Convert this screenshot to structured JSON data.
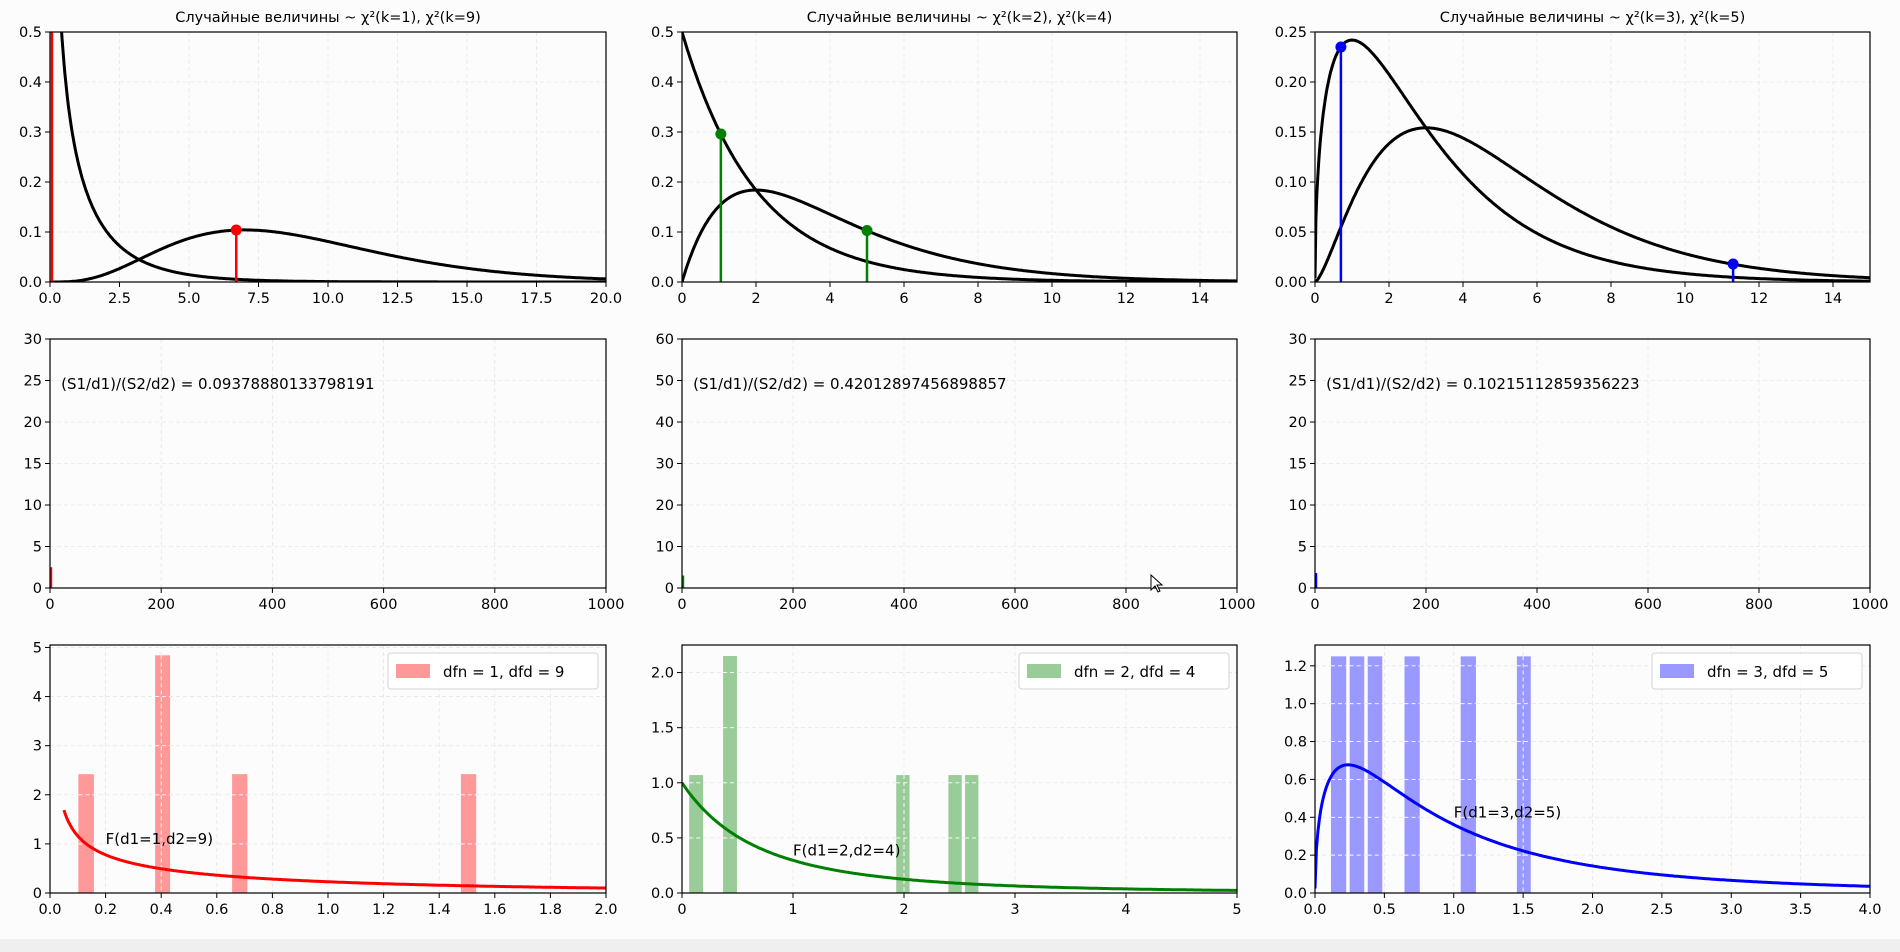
{
  "chart_data": [
    {
      "id": "chi2-1-9",
      "type": "line",
      "title": "Случайные величины ~ χ²(k=1), χ²(k=9)",
      "xlim": [
        0,
        20
      ],
      "ylim": [
        0,
        0.5
      ],
      "xticks": [
        "0.0",
        "2.5",
        "5.0",
        "7.5",
        "10.0",
        "12.5",
        "15.0",
        "17.5",
        "20.0"
      ],
      "yticks": [
        "0.0",
        "0.1",
        "0.2",
        "0.3",
        "0.4",
        "0.5"
      ],
      "grid": true,
      "series": [
        {
          "name": "chi2 k=1",
          "dist": "chi2",
          "k": 1,
          "color": "#000000"
        },
        {
          "name": "chi2 k=9",
          "dist": "chi2",
          "k": 9,
          "color": "#000000"
        }
      ],
      "stems": [
        {
          "x": 0.07,
          "y": 0.5,
          "marker": false
        },
        {
          "x": 6.7,
          "y": 0.104,
          "marker": true
        }
      ],
      "stem_color": "#ff0000"
    },
    {
      "id": "chi2-2-4",
      "type": "line",
      "title": "Случайные величины ~ χ²(k=2), χ²(k=4)",
      "xlim": [
        0,
        15
      ],
      "ylim": [
        0,
        0.5
      ],
      "xticks": [
        "0",
        "2",
        "4",
        "6",
        "8",
        "10",
        "12",
        "14"
      ],
      "yticks": [
        "0.0",
        "0.1",
        "0.2",
        "0.3",
        "0.4",
        "0.5"
      ],
      "grid": true,
      "series": [
        {
          "name": "chi2 k=2",
          "dist": "chi2",
          "k": 2,
          "color": "#000000"
        },
        {
          "name": "chi2 k=4",
          "dist": "chi2",
          "k": 4,
          "color": "#000000"
        }
      ],
      "stems": [
        {
          "x": 1.05,
          "y": 0.296,
          "marker": true
        },
        {
          "x": 5.0,
          "y": 0.103,
          "marker": true
        }
      ],
      "stem_color": "#008000"
    },
    {
      "id": "chi2-3-5",
      "type": "line",
      "title": "Случайные величины ~ χ²(k=3), χ²(k=5)",
      "xlim": [
        0,
        15
      ],
      "ylim": [
        0,
        0.25
      ],
      "xticks": [
        "0",
        "2",
        "4",
        "6",
        "8",
        "10",
        "12",
        "14"
      ],
      "yticks": [
        "0.00",
        "0.05",
        "0.10",
        "0.15",
        "0.20",
        "0.25"
      ],
      "grid": true,
      "series": [
        {
          "name": "chi2 k=3",
          "dist": "chi2",
          "k": 3,
          "color": "#000000"
        },
        {
          "name": "chi2 k=5",
          "dist": "chi2",
          "k": 5,
          "color": "#000000"
        }
      ],
      "stems": [
        {
          "x": 0.7,
          "y": 0.235,
          "marker": true
        },
        {
          "x": 11.3,
          "y": 0.018,
          "marker": true
        }
      ],
      "stem_color": "#0000ff"
    },
    {
      "id": "ratio-1",
      "type": "bar",
      "xlim": [
        0,
        1000
      ],
      "ylim": [
        0,
        30
      ],
      "xticks": [
        "0",
        "200",
        "400",
        "600",
        "800",
        "1000"
      ],
      "yticks": [
        "0",
        "5",
        "10",
        "15",
        "20",
        "25",
        "30"
      ],
      "grid": true,
      "annotation": {
        "text": "(S1/d1)/(S2/d2) = 0.09378880133798191",
        "x": 20,
        "y": 24
      },
      "bars": [
        {
          "x0": 0,
          "x1": 4,
          "h": 2.5
        }
      ],
      "color": "#ff0000"
    },
    {
      "id": "ratio-2",
      "type": "bar",
      "xlim": [
        0,
        1000
      ],
      "ylim": [
        0,
        60
      ],
      "xticks": [
        "0",
        "200",
        "400",
        "600",
        "800",
        "1000"
      ],
      "yticks": [
        "0",
        "10",
        "20",
        "30",
        "40",
        "50",
        "60"
      ],
      "grid": true,
      "annotation": {
        "text": "(S1/d1)/(S2/d2) = 0.42012897456898857",
        "x": 20,
        "y": 48
      },
      "bars": [
        {
          "x0": 0,
          "x1": 4,
          "h": 3
        }
      ],
      "color": "#008000"
    },
    {
      "id": "ratio-3",
      "type": "bar",
      "xlim": [
        0,
        1000
      ],
      "ylim": [
        0,
        30
      ],
      "xticks": [
        "0",
        "200",
        "400",
        "600",
        "800",
        "1000"
      ],
      "yticks": [
        "0",
        "5",
        "10",
        "15",
        "20",
        "25",
        "30"
      ],
      "grid": true,
      "annotation": {
        "text": "(S1/d1)/(S2/d2) = 0.10215112859356223",
        "x": 20,
        "y": 24
      },
      "bars": [
        {
          "x0": 0,
          "x1": 4,
          "h": 1.8
        }
      ],
      "color": "#0000ff"
    },
    {
      "id": "f-1-9",
      "type": "bar",
      "xlim": [
        0,
        2
      ],
      "ylim": [
        0,
        5.05
      ],
      "xticks": [
        "0.0",
        "0.2",
        "0.4",
        "0.6",
        "0.8",
        "1.0",
        "1.2",
        "1.4",
        "1.6",
        "1.8",
        "2.0"
      ],
      "yticks": [
        "0",
        "1",
        "2",
        "3",
        "4",
        "5"
      ],
      "grid": true,
      "bars": [
        {
          "x0": 0.102,
          "x1": 0.158,
          "h": 2.42
        },
        {
          "x0": 0.378,
          "x1": 0.432,
          "h": 4.84
        },
        {
          "x0": 0.655,
          "x1": 0.71,
          "h": 2.42
        },
        {
          "x0": 1.478,
          "x1": 1.533,
          "h": 2.42
        }
      ],
      "bar_color": "#ff9999",
      "curve": {
        "dist": "F",
        "d1": 1,
        "d2": 9,
        "x_start": 0.05,
        "color": "#ff0000"
      },
      "annotation": {
        "text": "F(d1=1,d2=9)",
        "x": 0.2,
        "y": 1.0
      },
      "legend": {
        "label": "dfn = 1, dfd = 9",
        "position": "top-right"
      }
    },
    {
      "id": "f-2-4",
      "type": "bar",
      "xlim": [
        0,
        5
      ],
      "ylim": [
        0,
        2.25
      ],
      "xticks": [
        "0",
        "1",
        "2",
        "3",
        "4",
        "5"
      ],
      "yticks": [
        "0.0",
        "0.5",
        "1.0",
        "1.5",
        "2.0"
      ],
      "grid": true,
      "bars": [
        {
          "x0": 0.065,
          "x1": 0.19,
          "h": 1.07
        },
        {
          "x0": 0.37,
          "x1": 0.495,
          "h": 2.15
        },
        {
          "x0": 1.93,
          "x1": 2.05,
          "h": 1.07
        },
        {
          "x0": 2.4,
          "x1": 2.52,
          "h": 1.07
        },
        {
          "x0": 2.55,
          "x1": 2.67,
          "h": 1.07
        }
      ],
      "bar_color": "#99cc99",
      "curve": {
        "dist": "F",
        "d1": 2,
        "d2": 4,
        "x_start": 0.0,
        "color": "#008000"
      },
      "annotation": {
        "text": "F(d1=2,d2=4)",
        "x": 1.0,
        "y": 0.34
      },
      "legend": {
        "label": "dfn = 2, dfd = 4",
        "position": "top-right"
      }
    },
    {
      "id": "f-3-5",
      "type": "bar",
      "xlim": [
        0,
        4
      ],
      "ylim": [
        0,
        1.31
      ],
      "xticks": [
        "0.0",
        "0.5",
        "1.0",
        "1.5",
        "2.0",
        "2.5",
        "3.0",
        "3.5",
        "4.0"
      ],
      "yticks": [
        "0.0",
        "0.2",
        "0.4",
        "0.6",
        "0.8",
        "1.0",
        "1.2"
      ],
      "grid": true,
      "bars": [
        {
          "x0": 0.115,
          "x1": 0.225,
          "h": 1.25
        },
        {
          "x0": 0.25,
          "x1": 0.355,
          "h": 1.25
        },
        {
          "x0": 0.38,
          "x1": 0.485,
          "h": 1.25
        },
        {
          "x0": 0.645,
          "x1": 0.755,
          "h": 1.25
        },
        {
          "x0": 1.05,
          "x1": 1.16,
          "h": 1.25
        },
        {
          "x0": 1.455,
          "x1": 1.555,
          "h": 1.25
        }
      ],
      "bar_color": "#9999ff",
      "curve": {
        "dist": "F",
        "d1": 3,
        "d2": 5,
        "x_start": 0.0,
        "color": "#0000ff"
      },
      "annotation": {
        "text": "F(d1=3,d2=5)",
        "x": 1.0,
        "y": 0.4
      },
      "legend": {
        "label": "dfn = 3, dfd = 5",
        "position": "top-right"
      }
    }
  ]
}
